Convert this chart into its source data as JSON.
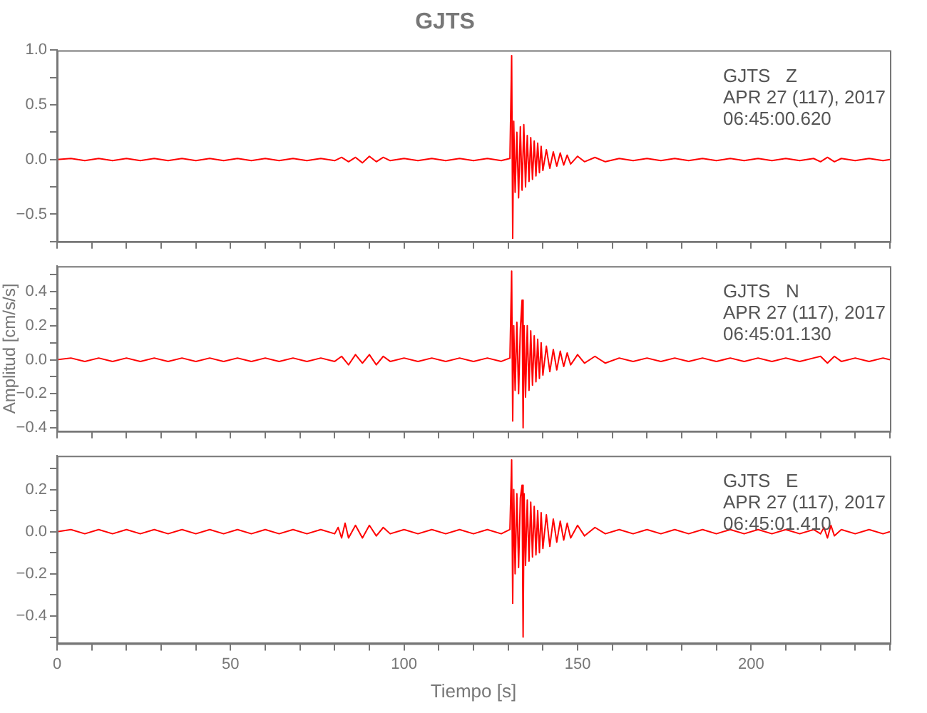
{
  "chart_data": [
    {
      "type": "line",
      "title": "GJTS",
      "annotations": [
        "GJTS   Z",
        "APR 27 (117), 2017",
        "06:45:00.620"
      ],
      "xlim": [
        0,
        240
      ],
      "ylim": [
        -0.75,
        1.0
      ],
      "xticks": [
        {
          "value": 0,
          "label": null
        },
        {
          "value": 10,
          "label": null
        },
        {
          "value": 20,
          "label": null
        },
        {
          "value": 30,
          "label": null
        },
        {
          "value": 40,
          "label": null
        },
        {
          "value": 50,
          "label": null
        },
        {
          "value": 60,
          "label": null
        },
        {
          "value": 70,
          "label": null
        },
        {
          "value": 80,
          "label": null
        },
        {
          "value": 90,
          "label": null
        },
        {
          "value": 100,
          "label": null
        },
        {
          "value": 110,
          "label": null
        },
        {
          "value": 120,
          "label": null
        },
        {
          "value": 130,
          "label": null
        },
        {
          "value": 140,
          "label": null
        },
        {
          "value": 150,
          "label": null
        },
        {
          "value": 160,
          "label": null
        },
        {
          "value": 170,
          "label": null
        },
        {
          "value": 180,
          "label": null
        },
        {
          "value": 190,
          "label": null
        },
        {
          "value": 200,
          "label": null
        },
        {
          "value": 210,
          "label": null
        },
        {
          "value": 220,
          "label": null
        },
        {
          "value": 230,
          "label": null
        },
        {
          "value": 240,
          "label": null
        }
      ],
      "yticks": [
        {
          "value": -0.75,
          "label": null
        },
        {
          "value": -0.5,
          "label": "−0.5"
        },
        {
          "value": -0.25,
          "label": null
        },
        {
          "value": 0,
          "label": "0.0"
        },
        {
          "value": 0.25,
          "label": null
        },
        {
          "value": 0.5,
          "label": "0.5"
        },
        {
          "value": 0.75,
          "label": null
        },
        {
          "value": 1.0,
          "label": "1.0"
        }
      ],
      "tick_labels": "y",
      "grid": false,
      "legend": false,
      "marker": "none",
      "line_style": "solid",
      "series": [
        {
          "color": "#ff0000",
          "x": [
            0,
            4,
            8,
            12,
            16,
            20,
            24,
            28,
            32,
            36,
            40,
            44,
            48,
            52,
            56,
            60,
            64,
            68,
            72,
            76,
            80,
            82,
            84,
            86,
            88,
            90,
            92,
            94,
            96,
            100,
            104,
            108,
            112,
            116,
            120,
            124,
            128,
            130.5,
            131,
            131.3,
            131.6,
            132,
            132.5,
            133,
            133.5,
            134,
            134.5,
            135,
            135.5,
            136,
            136.5,
            137,
            137.5,
            138,
            138.5,
            139,
            139.5,
            140,
            141,
            142,
            143,
            144,
            145,
            146,
            147,
            148,
            150,
            152,
            155,
            158,
            162,
            166,
            170,
            174,
            178,
            182,
            186,
            190,
            194,
            198,
            202,
            206,
            210,
            214,
            218,
            220,
            222,
            224,
            226,
            230,
            234,
            238,
            240
          ],
          "values": [
            0.0,
            0.01,
            -0.01,
            0.01,
            -0.01,
            0.01,
            -0.01,
            0.01,
            -0.01,
            0.01,
            -0.01,
            0.01,
            -0.01,
            0.01,
            -0.01,
            0.01,
            -0.01,
            0.01,
            -0.01,
            0.01,
            -0.01,
            0.02,
            -0.02,
            0.02,
            -0.03,
            0.03,
            -0.02,
            0.02,
            -0.01,
            0.01,
            -0.01,
            0.01,
            -0.01,
            0.01,
            -0.01,
            0.01,
            -0.01,
            0.01,
            0.95,
            -0.72,
            0.35,
            -0.3,
            0.25,
            -0.35,
            0.3,
            -0.28,
            0.32,
            -0.25,
            0.22,
            -0.2,
            0.2,
            -0.18,
            0.17,
            -0.15,
            0.15,
            -0.12,
            0.12,
            -0.1,
            0.09,
            -0.08,
            0.07,
            -0.06,
            0.06,
            -0.05,
            0.04,
            -0.04,
            0.03,
            -0.02,
            0.02,
            -0.02,
            0.01,
            -0.01,
            0.01,
            -0.01,
            0.01,
            -0.01,
            0.01,
            -0.01,
            0.01,
            -0.01,
            0.01,
            -0.01,
            0.01,
            -0.01,
            0.01,
            -0.02,
            0.02,
            -0.02,
            0.01,
            -0.01,
            0.01,
            -0.01,
            0.0
          ]
        }
      ]
    },
    {
      "type": "line",
      "ylabel": "Amplitud [cm/s/s]",
      "annotations": [
        "GJTS   N",
        "APR 27 (117), 2017",
        "06:45:01.130"
      ],
      "xlim": [
        0,
        240
      ],
      "ylim": [
        -0.42,
        0.55
      ],
      "xticks": [
        {
          "value": 0,
          "label": null
        },
        {
          "value": 10,
          "label": null
        },
        {
          "value": 20,
          "label": null
        },
        {
          "value": 30,
          "label": null
        },
        {
          "value": 40,
          "label": null
        },
        {
          "value": 50,
          "label": null
        },
        {
          "value": 60,
          "label": null
        },
        {
          "value": 70,
          "label": null
        },
        {
          "value": 80,
          "label": null
        },
        {
          "value": 90,
          "label": null
        },
        {
          "value": 100,
          "label": null
        },
        {
          "value": 110,
          "label": null
        },
        {
          "value": 120,
          "label": null
        },
        {
          "value": 130,
          "label": null
        },
        {
          "value": 140,
          "label": null
        },
        {
          "value": 150,
          "label": null
        },
        {
          "value": 160,
          "label": null
        },
        {
          "value": 170,
          "label": null
        },
        {
          "value": 180,
          "label": null
        },
        {
          "value": 190,
          "label": null
        },
        {
          "value": 200,
          "label": null
        },
        {
          "value": 210,
          "label": null
        },
        {
          "value": 220,
          "label": null
        },
        {
          "value": 230,
          "label": null
        },
        {
          "value": 240,
          "label": null
        }
      ],
      "yticks": [
        {
          "value": -0.4,
          "label": "−0.4"
        },
        {
          "value": -0.3,
          "label": null
        },
        {
          "value": -0.2,
          "label": "−0.2"
        },
        {
          "value": -0.1,
          "label": null
        },
        {
          "value": 0,
          "label": "0.0"
        },
        {
          "value": 0.1,
          "label": null
        },
        {
          "value": 0.2,
          "label": "0.2"
        },
        {
          "value": 0.3,
          "label": null
        },
        {
          "value": 0.4,
          "label": "0.4"
        },
        {
          "value": 0.5,
          "label": null
        }
      ],
      "tick_labels": "y",
      "grid": false,
      "legend": false,
      "marker": "none",
      "line_style": "solid",
      "series": [
        {
          "color": "#ff0000",
          "x": [
            0,
            4,
            8,
            12,
            16,
            20,
            24,
            28,
            32,
            36,
            40,
            44,
            48,
            52,
            56,
            60,
            64,
            68,
            72,
            76,
            80,
            82,
            84,
            86,
            88,
            90,
            92,
            94,
            96,
            100,
            104,
            108,
            112,
            116,
            120,
            124,
            128,
            130.5,
            131,
            131.3,
            131.6,
            132,
            132.5,
            133,
            133.5,
            134,
            134.3,
            134.6,
            135,
            135.5,
            136,
            136.5,
            137,
            137.5,
            138,
            138.5,
            139,
            139.5,
            140,
            141,
            142,
            143,
            144,
            145,
            146,
            147,
            148,
            150,
            152,
            155,
            158,
            162,
            166,
            170,
            174,
            178,
            182,
            186,
            190,
            194,
            198,
            202,
            206,
            210,
            214,
            218,
            220,
            222,
            224,
            226,
            230,
            234,
            238,
            240
          ],
          "values": [
            0.0,
            0.01,
            -0.01,
            0.01,
            -0.01,
            0.01,
            -0.01,
            0.01,
            -0.01,
            0.01,
            -0.01,
            0.01,
            -0.01,
            0.01,
            -0.01,
            0.01,
            -0.01,
            0.01,
            -0.01,
            0.01,
            -0.01,
            0.02,
            -0.03,
            0.03,
            -0.02,
            0.03,
            -0.03,
            0.02,
            -0.01,
            0.01,
            -0.01,
            0.01,
            -0.01,
            0.01,
            -0.01,
            0.01,
            -0.01,
            0.01,
            0.52,
            -0.36,
            0.2,
            -0.18,
            0.22,
            -0.2,
            0.18,
            0.35,
            -0.4,
            0.2,
            -0.22,
            0.2,
            -0.18,
            0.17,
            -0.15,
            0.14,
            -0.13,
            0.12,
            -0.11,
            0.1,
            -0.09,
            0.08,
            -0.07,
            0.06,
            -0.06,
            0.05,
            -0.04,
            0.04,
            -0.03,
            0.03,
            -0.02,
            0.02,
            -0.02,
            0.01,
            -0.01,
            0.01,
            -0.01,
            0.01,
            -0.01,
            0.01,
            -0.01,
            0.01,
            -0.01,
            0.01,
            -0.01,
            0.01,
            -0.01,
            0.01,
            0.02,
            -0.02,
            0.02,
            -0.01,
            0.01,
            -0.01,
            0.01,
            0.0
          ]
        }
      ]
    },
    {
      "type": "line",
      "xlabel": "Tiempo [s]",
      "annotations": [
        "GJTS   E",
        "APR 27 (117), 2017",
        "06:45:01.410"
      ],
      "xlim": [
        0,
        240
      ],
      "ylim": [
        -0.53,
        0.36
      ],
      "xticks": [
        {
          "value": 0,
          "label": "0"
        },
        {
          "value": 10,
          "label": null
        },
        {
          "value": 20,
          "label": null
        },
        {
          "value": 30,
          "label": null
        },
        {
          "value": 40,
          "label": null
        },
        {
          "value": 50,
          "label": "50"
        },
        {
          "value": 60,
          "label": null
        },
        {
          "value": 70,
          "label": null
        },
        {
          "value": 80,
          "label": null
        },
        {
          "value": 90,
          "label": null
        },
        {
          "value": 100,
          "label": "100"
        },
        {
          "value": 110,
          "label": null
        },
        {
          "value": 120,
          "label": null
        },
        {
          "value": 130,
          "label": null
        },
        {
          "value": 140,
          "label": null
        },
        {
          "value": 150,
          "label": "150"
        },
        {
          "value": 160,
          "label": null
        },
        {
          "value": 170,
          "label": null
        },
        {
          "value": 180,
          "label": null
        },
        {
          "value": 190,
          "label": null
        },
        {
          "value": 200,
          "label": "200"
        },
        {
          "value": 210,
          "label": null
        },
        {
          "value": 220,
          "label": null
        },
        {
          "value": 230,
          "label": null
        },
        {
          "value": 240,
          "label": null
        }
      ],
      "yticks": [
        {
          "value": -0.5,
          "label": null
        },
        {
          "value": -0.4,
          "label": "−0.4"
        },
        {
          "value": -0.3,
          "label": null
        },
        {
          "value": -0.2,
          "label": "−0.2"
        },
        {
          "value": -0.1,
          "label": null
        },
        {
          "value": 0,
          "label": "0.0"
        },
        {
          "value": 0.1,
          "label": null
        },
        {
          "value": 0.2,
          "label": "0.2"
        },
        {
          "value": 0.3,
          "label": null
        }
      ],
      "grid": false,
      "legend": false,
      "marker": "none",
      "line_style": "solid",
      "series": [
        {
          "color": "#ff0000",
          "x": [
            0,
            4,
            8,
            12,
            16,
            20,
            24,
            28,
            32,
            36,
            40,
            44,
            48,
            52,
            56,
            60,
            64,
            68,
            72,
            76,
            80,
            81,
            82,
            83,
            84,
            86,
            88,
            90,
            92,
            94,
            96,
            100,
            104,
            108,
            112,
            116,
            120,
            124,
            128,
            130.5,
            131,
            131.3,
            131.6,
            132,
            132.5,
            133,
            133.5,
            134,
            134.3,
            134.6,
            135,
            135.5,
            136,
            136.5,
            137,
            137.5,
            138,
            138.5,
            139,
            139.5,
            140,
            141,
            142,
            143,
            144,
            145,
            146,
            147,
            148,
            150,
            152,
            155,
            158,
            162,
            166,
            170,
            174,
            178,
            182,
            186,
            190,
            194,
            198,
            202,
            206,
            210,
            214,
            218,
            220,
            221,
            222,
            223,
            224,
            226,
            230,
            234,
            238,
            240
          ],
          "values": [
            0.0,
            0.01,
            -0.01,
            0.01,
            -0.01,
            0.01,
            -0.01,
            0.01,
            -0.01,
            0.01,
            -0.01,
            0.01,
            -0.01,
            0.01,
            -0.01,
            0.01,
            -0.01,
            0.01,
            -0.01,
            0.01,
            -0.01,
            0.02,
            -0.03,
            0.04,
            -0.03,
            0.03,
            -0.03,
            0.03,
            -0.02,
            0.02,
            -0.01,
            0.01,
            -0.01,
            0.01,
            -0.01,
            0.01,
            -0.01,
            0.01,
            -0.01,
            0.01,
            0.34,
            -0.34,
            0.2,
            -0.2,
            0.18,
            -0.17,
            0.16,
            0.22,
            -0.5,
            0.18,
            -0.16,
            0.15,
            -0.14,
            0.14,
            -0.12,
            0.12,
            -0.11,
            0.1,
            -0.1,
            0.09,
            -0.08,
            0.08,
            -0.07,
            0.06,
            -0.05,
            0.05,
            -0.04,
            0.04,
            -0.03,
            0.03,
            -0.02,
            0.02,
            -0.01,
            0.01,
            -0.01,
            0.01,
            -0.01,
            0.01,
            -0.01,
            0.01,
            -0.01,
            0.01,
            -0.01,
            0.01,
            -0.01,
            0.01,
            -0.01,
            0.01,
            -0.01,
            0.02,
            -0.03,
            0.03,
            -0.02,
            0.01,
            -0.01,
            0.01,
            -0.01,
            0.0
          ]
        }
      ]
    }
  ]
}
